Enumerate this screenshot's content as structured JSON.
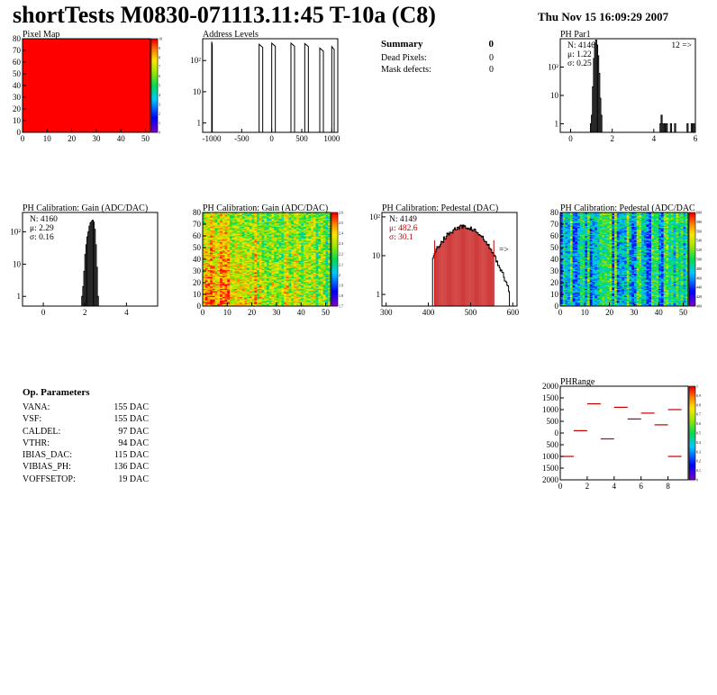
{
  "title": "shortTests M0830-071113.11:45 T-10a (C8)",
  "datestamp": "Thu Nov 15 16:09:29 2007",
  "summary": {
    "title": "Summary",
    "title_value": "0",
    "rows": [
      {
        "label": "Dead Pixels:",
        "value": "0"
      },
      {
        "label": "Mask defects:",
        "value": "0"
      }
    ]
  },
  "op_params": {
    "title": "Op. Parameters",
    "rows": [
      {
        "label": "VANA:",
        "value": "155 DAC"
      },
      {
        "label": "VSF:",
        "value": "155 DAC"
      },
      {
        "label": "CALDEL:",
        "value": "97 DAC"
      },
      {
        "label": "VTHR:",
        "value": "94 DAC"
      },
      {
        "label": "IBIAS_DAC:",
        "value": "115 DAC"
      },
      {
        "label": "VIBIAS_PH:",
        "value": "136 DAC"
      },
      {
        "label": "VOFFSETOP:",
        "value": "19 DAC"
      }
    ]
  },
  "colors": {
    "red_stats": "#c00000",
    "frame": "#000000",
    "pixelmap_fill": "#ff0000",
    "overflow_marker": "#c00000"
  },
  "chart_data": [
    {
      "id": "pixel-map",
      "type": "heatmap",
      "title": "Pixel Map",
      "fill_color": "#ff0000",
      "xlim": [
        0,
        52
      ],
      "ylim": [
        0,
        80
      ],
      "xticks": [
        "0",
        "10",
        "20",
        "30",
        "40",
        "50"
      ],
      "yticks": [
        "0",
        "10",
        "20",
        "30",
        "40",
        "50",
        "60",
        "70",
        "80"
      ],
      "zticks": [
        "0",
        "1",
        "2",
        "3",
        "4",
        "5",
        "6",
        "7",
        "8",
        "9",
        "10"
      ]
    },
    {
      "id": "address-levels",
      "type": "histogram",
      "title": "Address Levels",
      "xlim": [
        -1150,
        1100
      ],
      "ylog": true,
      "ylim": [
        0.5,
        500
      ],
      "xticks": [
        "-1000",
        "-500",
        "0",
        "500",
        "1000"
      ],
      "yticks": [
        "1",
        "10",
        "10²"
      ],
      "peaks": [
        {
          "x0": -1000,
          "x1": -990,
          "y": 400
        },
        {
          "x0": -210,
          "x1": -150,
          "y": 330
        },
        {
          "x0": 0,
          "x1": 60,
          "y": 360
        },
        {
          "x0": 320,
          "x1": 380,
          "y": 360
        },
        {
          "x0": 550,
          "x1": 610,
          "y": 350
        },
        {
          "x0": 800,
          "x1": 860,
          "y": 250
        },
        {
          "x0": 1000,
          "x1": 1040,
          "y": 280
        }
      ]
    },
    {
      "id": "ph-par1",
      "type": "histogram",
      "title": "PH Par1",
      "xlim": [
        -0.5,
        6
      ],
      "ylog": true,
      "ylim": [
        0.5,
        1000
      ],
      "xticks": [
        "0",
        "2",
        "4",
        "6"
      ],
      "yticks": [
        "1",
        "10",
        "10²"
      ],
      "stats": [
        "N: 4146",
        "μ: 1.22",
        "σ: 0.25"
      ],
      "overflow": "12 =>",
      "bins": [
        [
          0.95,
          1
        ],
        [
          1.0,
          2
        ],
        [
          1.05,
          20
        ],
        [
          1.1,
          200
        ],
        [
          1.15,
          700
        ],
        [
          1.2,
          900
        ],
        [
          1.25,
          600
        ],
        [
          1.3,
          250
        ],
        [
          1.35,
          60
        ],
        [
          1.4,
          8
        ],
        [
          1.45,
          2
        ],
        [
          4.3,
          1
        ],
        [
          4.35,
          2
        ],
        [
          4.4,
          1
        ],
        [
          4.5,
          1
        ],
        [
          4.6,
          1
        ],
        [
          4.8,
          1
        ],
        [
          5.0,
          1
        ],
        [
          5.6,
          1
        ],
        [
          5.8,
          1
        ],
        [
          5.9,
          1
        ]
      ]
    },
    {
      "id": "ph-gain-hist",
      "type": "histogram",
      "title": "PH Calibration: Gain (ADC/DAC)",
      "xlim": [
        -1,
        5.5
      ],
      "ylog": true,
      "ylim": [
        0.5,
        400
      ],
      "xticks": [
        "0",
        "2",
        "4"
      ],
      "yticks": [
        "1",
        "10",
        "10²"
      ],
      "stats": [
        "N: 4160",
        "μ: 2.29",
        "σ: 0.16"
      ],
      "bins": [
        [
          1.85,
          1
        ],
        [
          1.9,
          2
        ],
        [
          1.95,
          6
        ],
        [
          2.0,
          20
        ],
        [
          2.05,
          40
        ],
        [
          2.1,
          70
        ],
        [
          2.15,
          100
        ],
        [
          2.2,
          150
        ],
        [
          2.25,
          190
        ],
        [
          2.3,
          210
        ],
        [
          2.35,
          230
        ],
        [
          2.4,
          200
        ],
        [
          2.45,
          120
        ],
        [
          2.5,
          40
        ],
        [
          2.55,
          8
        ],
        [
          2.6,
          1
        ]
      ]
    },
    {
      "id": "ph-gain-map",
      "type": "heatmap",
      "title": "PH Calibration: Gain (ADC/DAC)",
      "xlim": [
        0,
        52
      ],
      "ylim": [
        0,
        80
      ],
      "xticks": [
        "0",
        "10",
        "20",
        "30",
        "40",
        "50"
      ],
      "yticks": [
        "0",
        "10",
        "20",
        "30",
        "40",
        "50",
        "60",
        "70",
        "80"
      ],
      "zticks": [
        "1.7",
        "1.8",
        "1.9",
        "2",
        "2.1",
        "2.2",
        "2.3",
        "2.4",
        "2.5",
        "2.6"
      ]
    },
    {
      "id": "ph-pedestal-hist",
      "type": "histogram",
      "title": "PH Calibration: Pedestal (DAC)",
      "xlim": [
        290,
        610
      ],
      "ylog": true,
      "ylim": [
        0.5,
        130
      ],
      "xticks": [
        "300",
        "400",
        "500",
        "600"
      ],
      "yticks": [
        "1",
        "10",
        "10²"
      ],
      "stats": [
        "N: 4149",
        "μ: 482.6",
        "σ: 30.1"
      ],
      "overflow": "=>",
      "fit_range": [
        415,
        555
      ],
      "mean": 482.6,
      "sigma": 30.1,
      "peak": 55
    },
    {
      "id": "ph-pedestal-map",
      "type": "heatmap",
      "title": "PH Calibration: Pedestal (ADC/DAC",
      "xlim": [
        0,
        52
      ],
      "ylim": [
        0,
        80
      ],
      "xticks": [
        "0",
        "10",
        "20",
        "30",
        "40",
        "50"
      ],
      "yticks": [
        "0",
        "10",
        "20",
        "30",
        "40",
        "50",
        "60",
        "70",
        "80"
      ],
      "zticks": [
        "400",
        "420",
        "440",
        "460",
        "480",
        "500",
        "520",
        "540",
        "560",
        "580",
        "600"
      ]
    },
    {
      "id": "ph-range",
      "type": "scatter",
      "title": "PHRange",
      "xlim": [
        0,
        9.5
      ],
      "ylim": [
        -2000,
        2000
      ],
      "xticks": [
        "0",
        "2",
        "4",
        "6",
        "8"
      ],
      "yticks": [
        "2000",
        "1500",
        "1000",
        "500",
        "0",
        "500",
        "1000",
        "1500",
        "2000"
      ],
      "zticks": [
        "0",
        "0.1",
        "0.2",
        "0.3",
        "0.4",
        "0.5",
        "0.6",
        "0.7",
        "0.8",
        "0.9",
        "1"
      ],
      "points": [
        [
          0.5,
          -1000
        ],
        [
          1.5,
          100
        ],
        [
          2.5,
          1250
        ],
        [
          3.5,
          -250
        ],
        [
          4.5,
          1100
        ],
        [
          5.5,
          600
        ],
        [
          6.5,
          850
        ],
        [
          7.5,
          350
        ],
        [
          8.5,
          1000
        ],
        [
          8.5,
          -1000
        ]
      ]
    }
  ]
}
